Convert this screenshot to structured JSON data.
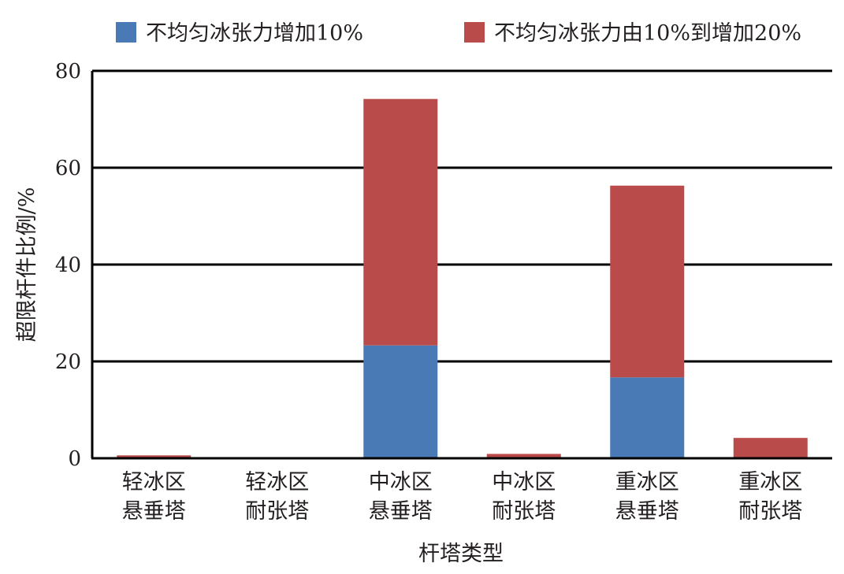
{
  "chart_data": {
    "type": "bar",
    "stacked": true,
    "xlabel": "杆塔类型",
    "ylabel": "超限杆件比例/%",
    "ylim": [
      0,
      80
    ],
    "yticks": [
      0,
      20,
      40,
      60,
      80
    ],
    "grid": true,
    "legend_position": "top",
    "categories": [
      [
        "轻冰区",
        "悬垂塔"
      ],
      [
        "轻冰区",
        "耐张塔"
      ],
      [
        "中冰区",
        "悬垂塔"
      ],
      [
        "中冰区",
        "耐张塔"
      ],
      [
        "重冰区",
        "悬垂塔"
      ],
      [
        "重冰区",
        "耐张塔"
      ]
    ],
    "series": [
      {
        "name": "不均匀冰张力增加10%",
        "color": "#4a7ab5",
        "values": [
          0,
          0,
          23.3,
          0,
          16.7,
          0
        ]
      },
      {
        "name": "不均匀冰张力由10%到增加20%",
        "color": "#b94c4b",
        "values": [
          0.6,
          0,
          50.9,
          0.9,
          39.6,
          4.2
        ]
      }
    ]
  }
}
